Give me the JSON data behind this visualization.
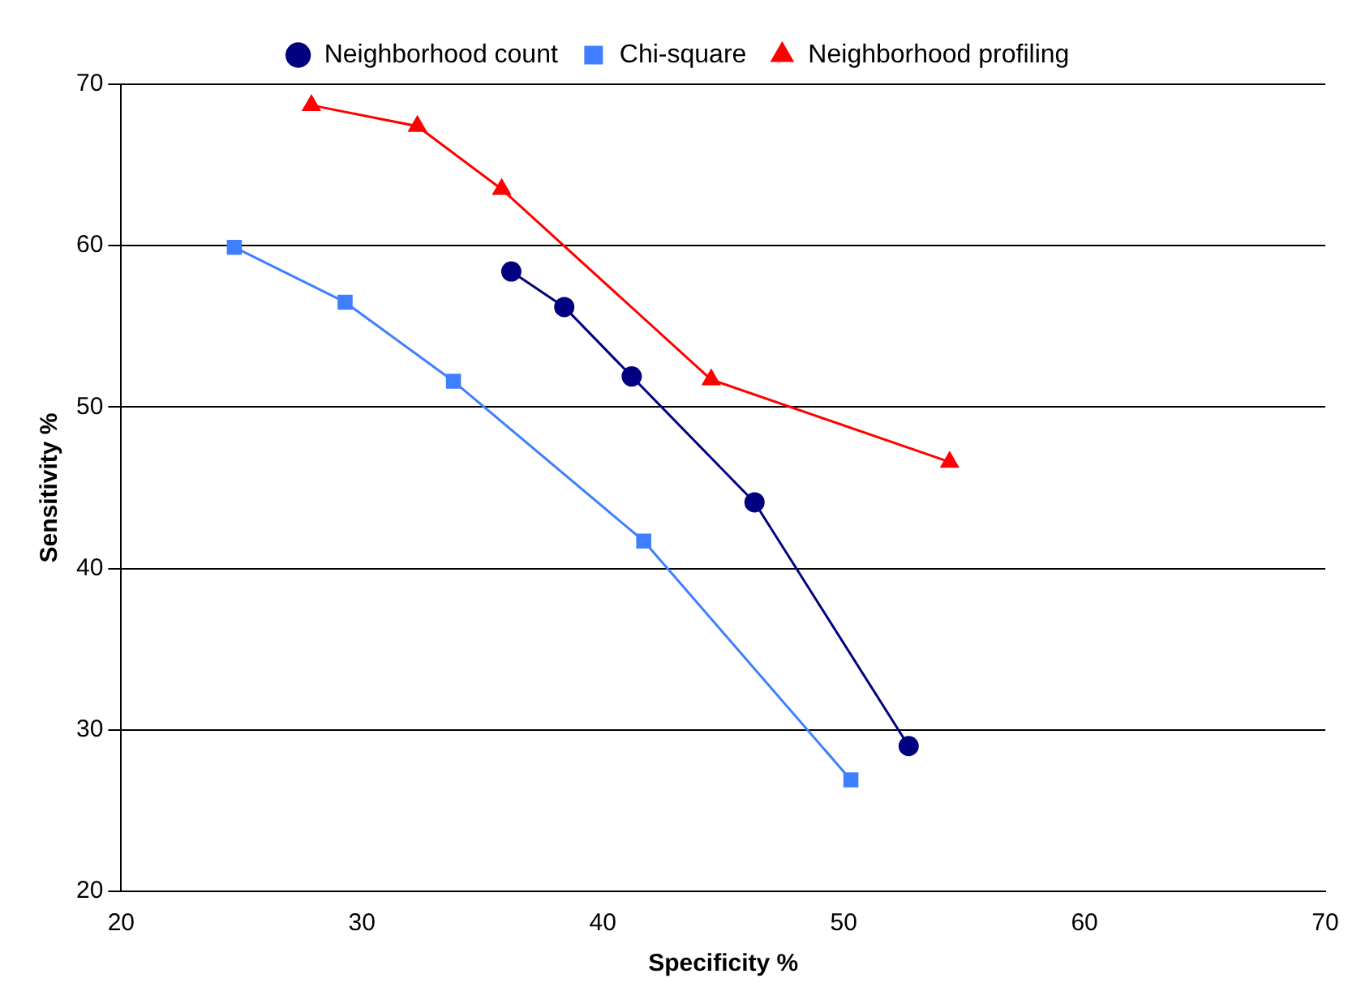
{
  "chart_data": {
    "type": "line",
    "xlabel": "Specificity %",
    "ylabel": "Sensitivity %",
    "xlim": [
      20,
      70
    ],
    "xticks": [
      20,
      30,
      40,
      50,
      60,
      70
    ],
    "ylim": [
      20,
      70
    ],
    "yticks": [
      20,
      30,
      40,
      50,
      60,
      70
    ],
    "grid": "y",
    "legend": "top",
    "series": [
      {
        "name": "Neighborhood count",
        "color": "#000080",
        "marker": "circle",
        "x": [
          36.2,
          38.4,
          41.2,
          46.3,
          52.7
        ],
        "values": [
          58.4,
          56.2,
          51.9,
          44.1,
          29.0
        ]
      },
      {
        "name": "Chi-square",
        "color": "#3f7fff",
        "marker": "square",
        "x": [
          24.7,
          29.3,
          33.8,
          41.7,
          50.3
        ],
        "values": [
          59.9,
          56.5,
          51.6,
          41.7,
          26.9
        ]
      },
      {
        "name": "Neighborhood profiling",
        "color": "#ff0000",
        "marker": "triangle",
        "x": [
          27.9,
          32.3,
          35.8,
          44.5,
          54.4
        ],
        "values": [
          68.7,
          67.4,
          63.5,
          51.7,
          46.6
        ]
      }
    ]
  }
}
